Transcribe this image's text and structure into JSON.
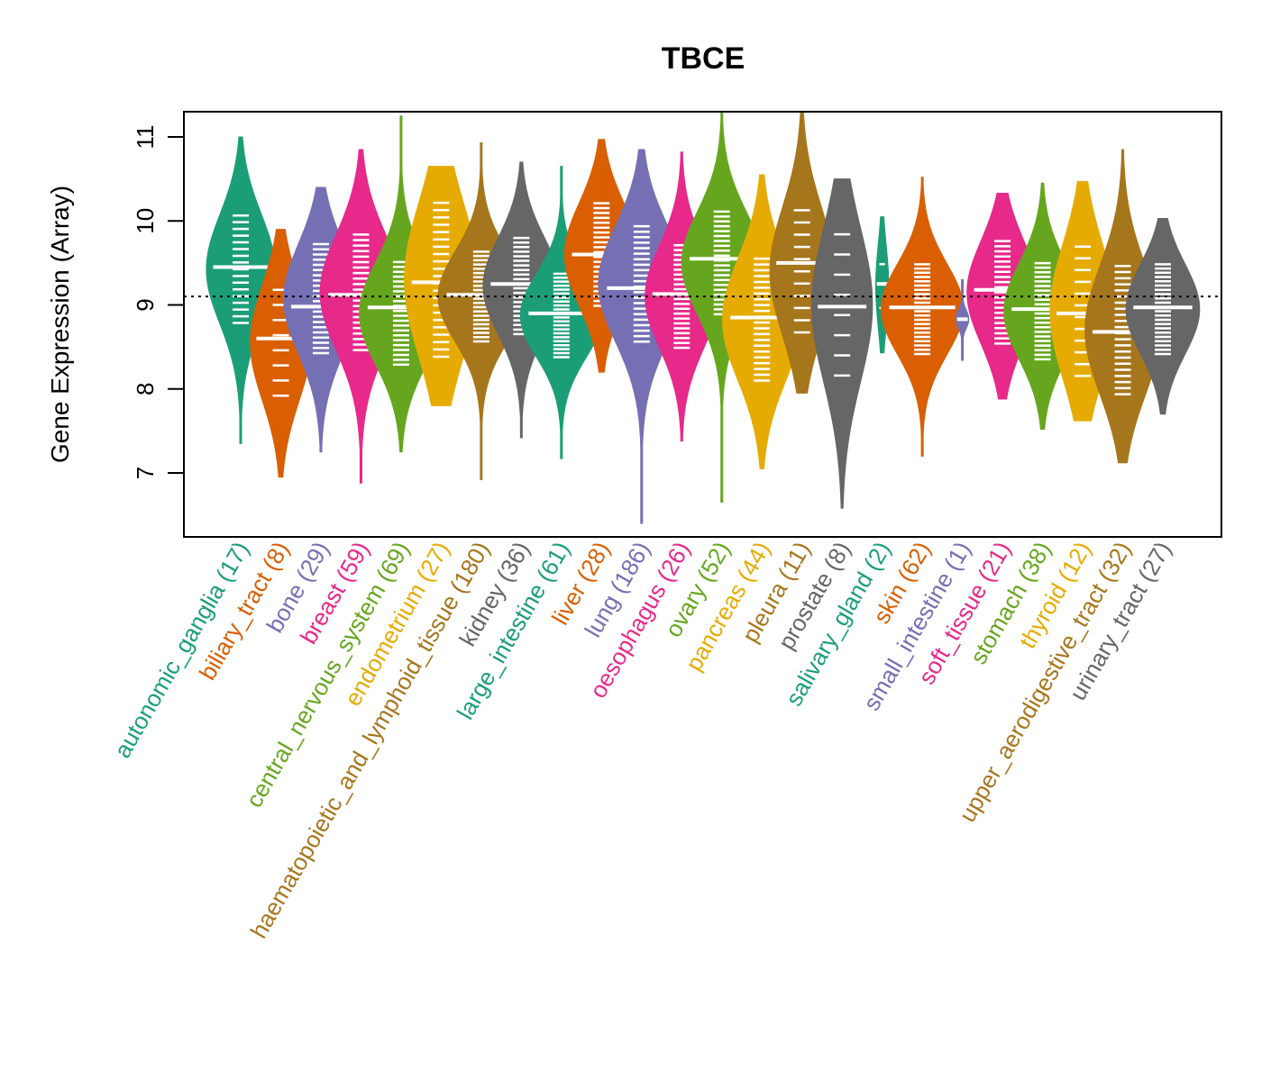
{
  "chart_data": {
    "type": "violin",
    "title": "TBCE",
    "xlabel": "",
    "ylabel": "Gene Expression (Array)",
    "ylim": [
      6.3,
      11.3
    ],
    "yticks": [
      7,
      8,
      9,
      10,
      11
    ],
    "reference_line": {
      "value": 9.1,
      "style": "dotted",
      "color": "#000000"
    },
    "grid": false,
    "legend": "none",
    "categories": [
      {
        "name": "autonomic_ganglia",
        "n": 17,
        "label": "autonomic_ganglia (17)",
        "color": "#1B9E77",
        "min": 7.35,
        "max": 11.0,
        "median": 9.45,
        "q1": 9.0,
        "q3": 9.85
      },
      {
        "name": "biliary_tract",
        "n": 8,
        "label": "biliary_tract (8)",
        "color": "#D95F02",
        "min": 6.95,
        "max": 9.9,
        "median": 8.6,
        "q1": 8.1,
        "q3": 9.0
      },
      {
        "name": "bone",
        "n": 29,
        "label": "bone (29)",
        "color": "#7570B3",
        "min": 7.25,
        "max": 10.4,
        "median": 8.98,
        "q1": 8.65,
        "q3": 9.5
      },
      {
        "name": "breast",
        "n": 59,
        "label": "breast (59)",
        "color": "#E7298A",
        "min": 6.88,
        "max": 10.85,
        "median": 9.12,
        "q1": 8.7,
        "q3": 9.6
      },
      {
        "name": "central_nervous_system",
        "n": 69,
        "label": "central_nervous_system (69)",
        "color": "#66A61E",
        "min": 7.25,
        "max": 11.25,
        "median": 8.97,
        "q1": 8.5,
        "q3": 9.3
      },
      {
        "name": "endometrium",
        "n": 27,
        "label": "endometrium (27)",
        "color": "#E6AB02",
        "min": 7.8,
        "max": 10.65,
        "median": 9.27,
        "q1": 8.7,
        "q3": 9.9
      },
      {
        "name": "haematopoietic_and_lymphoid_tissue",
        "n": 180,
        "label": "haematopoietic_and_lymphoid_tissue (180)",
        "color": "#A6761D",
        "min": 6.92,
        "max": 10.93,
        "median": 9.12,
        "q1": 8.75,
        "q3": 9.45
      },
      {
        "name": "kidney",
        "n": 36,
        "label": "kidney (36)",
        "color": "#666666",
        "min": 7.42,
        "max": 10.7,
        "median": 9.25,
        "q1": 8.85,
        "q3": 9.6
      },
      {
        "name": "large_intestine",
        "n": 61,
        "label": "large_intestine (61)",
        "color": "#1B9E77",
        "min": 7.17,
        "max": 10.65,
        "median": 8.9,
        "q1": 8.55,
        "q3": 9.2
      },
      {
        "name": "liver",
        "n": 28,
        "label": "liver (28)",
        "color": "#D95F02",
        "min": 8.2,
        "max": 10.97,
        "median": 9.6,
        "q1": 9.2,
        "q3": 10.0
      },
      {
        "name": "lung",
        "n": 186,
        "label": "lung (186)",
        "color": "#7570B3",
        "min": 6.4,
        "max": 10.85,
        "median": 9.2,
        "q1": 8.8,
        "q3": 9.7
      },
      {
        "name": "oesophagus",
        "n": 26,
        "label": "oesophagus (26)",
        "color": "#E7298A",
        "min": 7.38,
        "max": 10.82,
        "median": 9.13,
        "q1": 8.7,
        "q3": 9.5
      },
      {
        "name": "ovary",
        "n": 52,
        "label": "ovary (52)",
        "color": "#66A61E",
        "min": 6.65,
        "max": 11.3,
        "median": 9.55,
        "q1": 9.1,
        "q3": 9.9
      },
      {
        "name": "pancreas",
        "n": 44,
        "label": "pancreas (44)",
        "color": "#E6AB02",
        "min": 7.05,
        "max": 10.55,
        "median": 8.85,
        "q1": 8.35,
        "q3": 9.3
      },
      {
        "name": "pleura",
        "n": 11,
        "label": "pleura (11)",
        "color": "#A6761D",
        "min": 7.95,
        "max": 11.3,
        "median": 9.5,
        "q1": 8.9,
        "q3": 9.9
      },
      {
        "name": "prostate",
        "n": 8,
        "label": "prostate (8)",
        "color": "#666666",
        "min": 6.58,
        "max": 10.5,
        "median": 8.98,
        "q1": 8.4,
        "q3": 9.6
      },
      {
        "name": "salivary_gland",
        "n": 2,
        "label": "salivary_gland (2)",
        "color": "#1B9E77",
        "min": 8.43,
        "max": 10.05,
        "median": 9.25,
        "q1": 8.9,
        "q3": 9.55
      },
      {
        "name": "skin",
        "n": 62,
        "label": "skin (62)",
        "color": "#D95F02",
        "min": 7.2,
        "max": 10.52,
        "median": 8.97,
        "q1": 8.6,
        "q3": 9.3
      },
      {
        "name": "small_intestine",
        "n": 1,
        "label": "small_intestine (1)",
        "color": "#7570B3",
        "min": 8.34,
        "max": 9.3,
        "median": 8.83,
        "q1": 8.83,
        "q3": 8.83
      },
      {
        "name": "soft_tissue",
        "n": 21,
        "label": "soft_tissue (21)",
        "color": "#E7298A",
        "min": 7.88,
        "max": 10.33,
        "median": 9.18,
        "q1": 8.75,
        "q3": 9.55
      },
      {
        "name": "stomach",
        "n": 38,
        "label": "stomach (38)",
        "color": "#66A61E",
        "min": 7.52,
        "max": 10.45,
        "median": 8.95,
        "q1": 8.55,
        "q3": 9.3
      },
      {
        "name": "thyroid",
        "n": 12,
        "label": "thyroid (12)",
        "color": "#E6AB02",
        "min": 7.62,
        "max": 10.47,
        "median": 8.9,
        "q1": 8.4,
        "q3": 9.45
      },
      {
        "name": "upper_aerodigestive_tract",
        "n": 32,
        "label": "upper_aerodigestive_tract (32)",
        "color": "#A6761D",
        "min": 7.12,
        "max": 10.85,
        "median": 8.68,
        "q1": 8.2,
        "q3": 9.2
      },
      {
        "name": "urinary_tract",
        "n": 27,
        "label": "urinary_tract (27)",
        "color": "#666666",
        "min": 7.7,
        "max": 10.03,
        "median": 8.97,
        "q1": 8.6,
        "q3": 9.3
      }
    ]
  }
}
